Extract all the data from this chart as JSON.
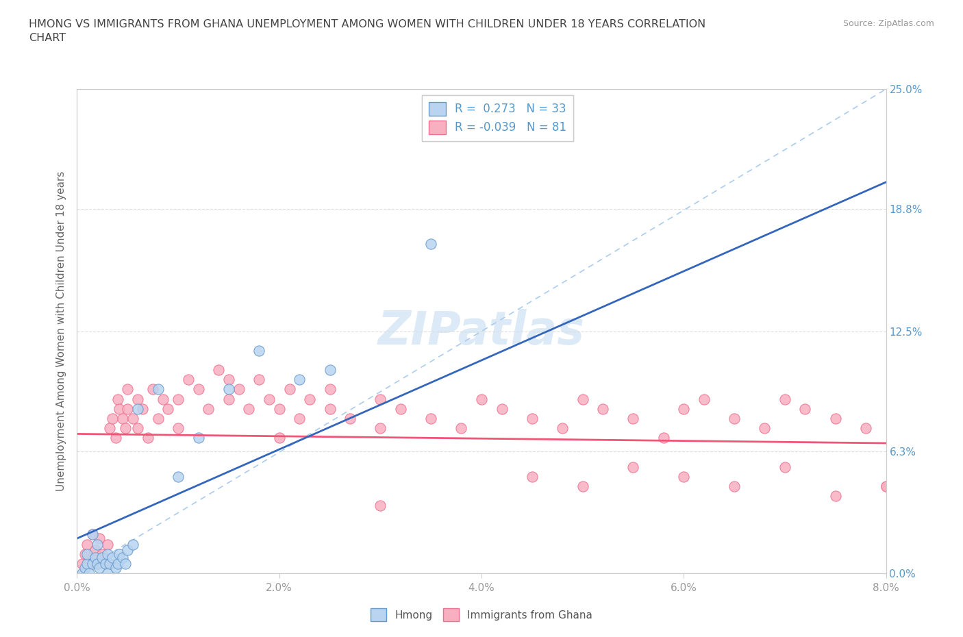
{
  "title": "HMONG VS IMMIGRANTS FROM GHANA UNEMPLOYMENT AMONG WOMEN WITH CHILDREN UNDER 18 YEARS CORRELATION\nCHART",
  "source": "Source: ZipAtlas.com",
  "ylabel_label": "Unemployment Among Women with Children Under 18 years",
  "x_tick_labels": [
    "0.0%",
    "2.0%",
    "4.0%",
    "6.0%",
    "8.0%"
  ],
  "x_tick_values": [
    0.0,
    2.0,
    4.0,
    6.0,
    8.0
  ],
  "y_tick_labels": [
    "0.0%",
    "6.3%",
    "12.5%",
    "18.8%",
    "25.0%"
  ],
  "y_tick_values": [
    0.0,
    6.3,
    12.5,
    18.8,
    25.0
  ],
  "xlim": [
    0.0,
    8.0
  ],
  "ylim": [
    0.0,
    25.0
  ],
  "hmong_color": "#b8d4f0",
  "ghana_color": "#f8b0c0",
  "hmong_edge_color": "#6699cc",
  "ghana_edge_color": "#ee7090",
  "hmong_line_color": "#3366bb",
  "ghana_line_color": "#ee5577",
  "diag_line_color": "#aaccee",
  "legend_R_hmong": "0.273",
  "legend_N_hmong": "33",
  "legend_R_ghana": "-0.039",
  "legend_N_ghana": "81",
  "title_color": "#444444",
  "axis_label_color": "#666666",
  "tick_color_x": "#999999",
  "tick_color_y_right": "#5599cc",
  "watermark": "ZIPatlas",
  "hmong_x": [
    0.05,
    0.08,
    0.1,
    0.1,
    0.12,
    0.15,
    0.15,
    0.18,
    0.2,
    0.2,
    0.22,
    0.25,
    0.28,
    0.3,
    0.3,
    0.32,
    0.35,
    0.38,
    0.4,
    0.42,
    0.45,
    0.48,
    0.5,
    0.55,
    0.6,
    0.8,
    1.0,
    1.2,
    1.5,
    1.8,
    2.2,
    2.5,
    3.5
  ],
  "hmong_y": [
    0.0,
    0.3,
    0.5,
    1.0,
    0.0,
    0.5,
    2.0,
    0.8,
    0.5,
    1.5,
    0.3,
    0.8,
    0.5,
    1.0,
    0.0,
    0.5,
    0.8,
    0.3,
    0.5,
    1.0,
    0.8,
    0.5,
    1.2,
    1.5,
    8.5,
    9.5,
    5.0,
    7.0,
    9.5,
    11.5,
    10.0,
    10.5,
    17.0
  ],
  "ghana_x": [
    0.05,
    0.08,
    0.1,
    0.12,
    0.15,
    0.15,
    0.18,
    0.2,
    0.22,
    0.25,
    0.28,
    0.3,
    0.32,
    0.35,
    0.38,
    0.4,
    0.42,
    0.45,
    0.48,
    0.5,
    0.5,
    0.55,
    0.6,
    0.6,
    0.65,
    0.7,
    0.75,
    0.8,
    0.85,
    0.9,
    1.0,
    1.0,
    1.1,
    1.2,
    1.3,
    1.4,
    1.5,
    1.5,
    1.6,
    1.7,
    1.8,
    1.9,
    2.0,
    2.0,
    2.1,
    2.2,
    2.3,
    2.5,
    2.5,
    2.7,
    3.0,
    3.0,
    3.2,
    3.5,
    3.8,
    4.0,
    4.2,
    4.5,
    4.8,
    5.0,
    5.2,
    5.5,
    5.8,
    6.0,
    6.2,
    6.5,
    6.8,
    7.0,
    7.2,
    7.5,
    7.8,
    8.0,
    4.5,
    5.0,
    5.5,
    6.0,
    6.5,
    7.0,
    7.5,
    8.0,
    3.0
  ],
  "ghana_y": [
    0.5,
    1.0,
    1.5,
    0.5,
    0.8,
    2.0,
    1.2,
    0.5,
    1.8,
    1.0,
    0.5,
    1.5,
    7.5,
    8.0,
    7.0,
    9.0,
    8.5,
    8.0,
    7.5,
    8.5,
    9.5,
    8.0,
    7.5,
    9.0,
    8.5,
    7.0,
    9.5,
    8.0,
    9.0,
    8.5,
    7.5,
    9.0,
    10.0,
    9.5,
    8.5,
    10.5,
    9.0,
    10.0,
    9.5,
    8.5,
    10.0,
    9.0,
    8.5,
    7.0,
    9.5,
    8.0,
    9.0,
    8.5,
    9.5,
    8.0,
    7.5,
    9.0,
    8.5,
    8.0,
    7.5,
    9.0,
    8.5,
    8.0,
    7.5,
    9.0,
    8.5,
    8.0,
    7.0,
    8.5,
    9.0,
    8.0,
    7.5,
    9.0,
    8.5,
    8.0,
    7.5,
    4.5,
    5.0,
    4.5,
    5.5,
    5.0,
    4.5,
    5.5,
    4.0,
    4.5,
    3.5
  ]
}
